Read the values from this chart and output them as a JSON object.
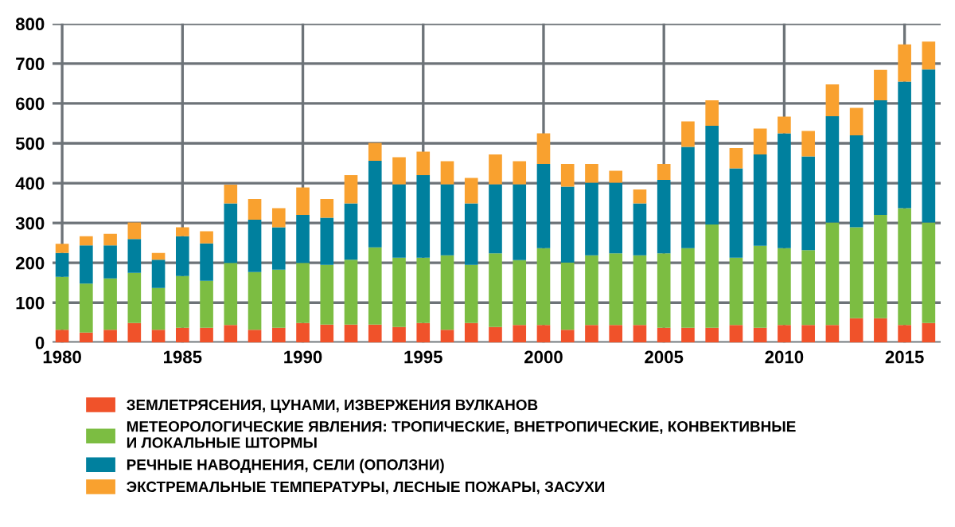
{
  "chart_data": {
    "type": "bar",
    "stacked": true,
    "x": [
      1980,
      1981,
      1982,
      1983,
      1984,
      1985,
      1986,
      1987,
      1988,
      1989,
      1990,
      1991,
      1992,
      1993,
      1994,
      1995,
      1996,
      1997,
      1998,
      1999,
      2000,
      2001,
      2002,
      2003,
      2004,
      2005,
      2006,
      2007,
      2008,
      2009,
      2010,
      2011,
      2012,
      2013,
      2014,
      2015,
      2016
    ],
    "series": [
      {
        "name": "ЗЕМЛЕТРЯСЕНИЯ, ЦУНАМИ, ИЗВЕРЖЕНИЯ ВУЛКАНОВ",
        "color": "#f0522a",
        "values": [
          32,
          25,
          32,
          49,
          32,
          37,
          37,
          44,
          32,
          37,
          49,
          45,
          45,
          45,
          39,
          49,
          32,
          49,
          39,
          44,
          44,
          32,
          44,
          44,
          44,
          37,
          37,
          37,
          44,
          37,
          44,
          44,
          44,
          61,
          61,
          44,
          49
        ]
      },
      {
        "name": "МЕТЕОРОЛОГИЧЕСКИЕ ЯВЛЕНИЯ: ТРОПИЧЕСКИЕ, ВНЕТРОПИЧЕСКИЕ, КОНВЕКТИВНЫЕ\nИ ЛОКАЛЬНЫЕ ШТОРМЫ",
        "color": "#7cbd42",
        "values": [
          133,
          123,
          129,
          126,
          105,
          130,
          118,
          156,
          145,
          146,
          151,
          150,
          163,
          194,
          174,
          164,
          187,
          146,
          185,
          163,
          193,
          169,
          175,
          180,
          175,
          187,
          200,
          259,
          169,
          206,
          193,
          188,
          257,
          228,
          259,
          293,
          252
        ]
      },
      {
        "name": "РЕЧНЫЕ НАВОДНЕНИЯ, СЕЛИ (ОПОЛЗНИ)",
        "color": "#00809e",
        "values": [
          60,
          96,
          83,
          85,
          71,
          100,
          94,
          149,
          131,
          106,
          120,
          118,
          141,
          217,
          184,
          207,
          178,
          154,
          173,
          190,
          211,
          190,
          182,
          177,
          130,
          184,
          254,
          248,
          224,
          229,
          288,
          235,
          267,
          231,
          288,
          318,
          384
        ]
      },
      {
        "name": "ЭКСТРЕМАЛЬНЫЕ ТЕМПЕРАТУРЫ, ЛЕСНЫЕ ПОЖАРЫ, ЗАСУХИ",
        "color": "#f9a12f",
        "values": [
          23,
          23,
          29,
          41,
          17,
          22,
          30,
          47,
          52,
          48,
          69,
          47,
          71,
          45,
          68,
          59,
          58,
          64,
          75,
          58,
          77,
          57,
          47,
          30,
          35,
          40,
          64,
          64,
          51,
          65,
          42,
          64,
          80,
          69,
          76,
          93,
          70
        ]
      }
    ],
    "xlim": [
      1979.6,
      2016.5
    ],
    "xticks": [
      1980,
      1985,
      1990,
      1995,
      2000,
      2005,
      2010,
      2015
    ],
    "ylim": [
      0,
      800
    ],
    "yticks": [
      0,
      100,
      200,
      300,
      400,
      500,
      600,
      700,
      800
    ],
    "grid": true,
    "legend": "bottom"
  }
}
